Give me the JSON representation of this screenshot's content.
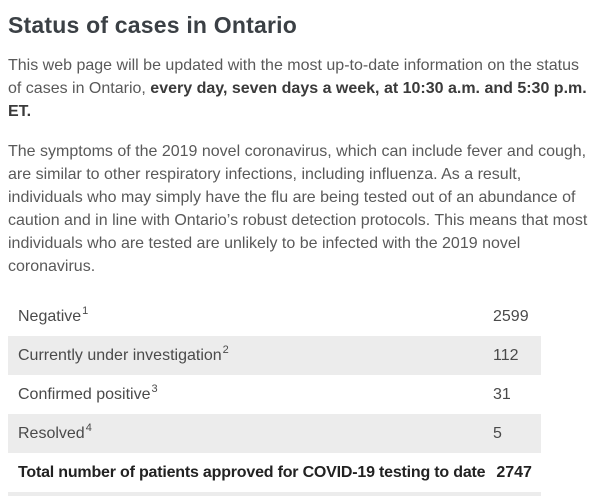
{
  "page": {
    "title": "Status of cases in Ontario"
  },
  "intro": {
    "regular": "This web page will be updated with the most up-to-date information on the status of cases in Ontario, ",
    "bold": "every day, seven days a week, at 10:30 a.m. and 5:30 p.m. ET."
  },
  "symptoms_paragraph": "The symptoms of the 2019 novel coronavirus, which can include fever and cough, are similar to other respiratory infections, including influenza. As a result, individuals who may simply have the flu are being tested out of an abundance of caution and in line with Ontario’s robust detection protocols. This means that most individuals who are tested are unlikely to be infected with the 2019 novel coronavirus.",
  "table": {
    "rows": [
      {
        "label": "Negative",
        "footnote": "1",
        "value": "2599"
      },
      {
        "label": "Currently under investigation",
        "footnote": "2",
        "value": "112"
      },
      {
        "label": "Confirmed positive",
        "footnote": "3",
        "value": "31"
      },
      {
        "label": "Resolved",
        "footnote": "4",
        "value": "5"
      },
      {
        "label": "Total number of patients approved for COVID-19 testing to date",
        "footnote": "",
        "value": "2747"
      }
    ]
  },
  "colors": {
    "heading": "#3b4045",
    "body_text": "#595959",
    "row_shaded": "#ececec"
  }
}
